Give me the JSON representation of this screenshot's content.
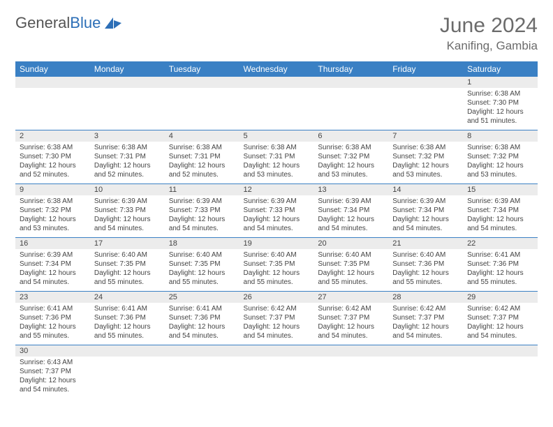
{
  "brand": {
    "word1": "General",
    "word2": "Blue",
    "logo_fill": "#2d6fb7"
  },
  "header": {
    "title": "June 2024",
    "location": "Kanifing, Gambia"
  },
  "colors": {
    "header_bg": "#3a80c4",
    "daynum_bg": "#ececec",
    "line": "#3a80c4",
    "text": "#444444"
  },
  "day_labels": [
    "Sunday",
    "Monday",
    "Tuesday",
    "Wednesday",
    "Thursday",
    "Friday",
    "Saturday"
  ],
  "weeks": [
    {
      "nums": [
        "",
        "",
        "",
        "",
        "",
        "",
        "1"
      ],
      "details": [
        "",
        "",
        "",
        "",
        "",
        "",
        "Sunrise: 6:38 AM\nSunset: 7:30 PM\nDaylight: 12 hours and 51 minutes."
      ]
    },
    {
      "nums": [
        "2",
        "3",
        "4",
        "5",
        "6",
        "7",
        "8"
      ],
      "details": [
        "Sunrise: 6:38 AM\nSunset: 7:30 PM\nDaylight: 12 hours and 52 minutes.",
        "Sunrise: 6:38 AM\nSunset: 7:31 PM\nDaylight: 12 hours and 52 minutes.",
        "Sunrise: 6:38 AM\nSunset: 7:31 PM\nDaylight: 12 hours and 52 minutes.",
        "Sunrise: 6:38 AM\nSunset: 7:31 PM\nDaylight: 12 hours and 53 minutes.",
        "Sunrise: 6:38 AM\nSunset: 7:32 PM\nDaylight: 12 hours and 53 minutes.",
        "Sunrise: 6:38 AM\nSunset: 7:32 PM\nDaylight: 12 hours and 53 minutes.",
        "Sunrise: 6:38 AM\nSunset: 7:32 PM\nDaylight: 12 hours and 53 minutes."
      ]
    },
    {
      "nums": [
        "9",
        "10",
        "11",
        "12",
        "13",
        "14",
        "15"
      ],
      "details": [
        "Sunrise: 6:38 AM\nSunset: 7:32 PM\nDaylight: 12 hours and 53 minutes.",
        "Sunrise: 6:39 AM\nSunset: 7:33 PM\nDaylight: 12 hours and 54 minutes.",
        "Sunrise: 6:39 AM\nSunset: 7:33 PM\nDaylight: 12 hours and 54 minutes.",
        "Sunrise: 6:39 AM\nSunset: 7:33 PM\nDaylight: 12 hours and 54 minutes.",
        "Sunrise: 6:39 AM\nSunset: 7:34 PM\nDaylight: 12 hours and 54 minutes.",
        "Sunrise: 6:39 AM\nSunset: 7:34 PM\nDaylight: 12 hours and 54 minutes.",
        "Sunrise: 6:39 AM\nSunset: 7:34 PM\nDaylight: 12 hours and 54 minutes."
      ]
    },
    {
      "nums": [
        "16",
        "17",
        "18",
        "19",
        "20",
        "21",
        "22"
      ],
      "details": [
        "Sunrise: 6:39 AM\nSunset: 7:34 PM\nDaylight: 12 hours and 54 minutes.",
        "Sunrise: 6:40 AM\nSunset: 7:35 PM\nDaylight: 12 hours and 55 minutes.",
        "Sunrise: 6:40 AM\nSunset: 7:35 PM\nDaylight: 12 hours and 55 minutes.",
        "Sunrise: 6:40 AM\nSunset: 7:35 PM\nDaylight: 12 hours and 55 minutes.",
        "Sunrise: 6:40 AM\nSunset: 7:35 PM\nDaylight: 12 hours and 55 minutes.",
        "Sunrise: 6:40 AM\nSunset: 7:36 PM\nDaylight: 12 hours and 55 minutes.",
        "Sunrise: 6:41 AM\nSunset: 7:36 PM\nDaylight: 12 hours and 55 minutes."
      ]
    },
    {
      "nums": [
        "23",
        "24",
        "25",
        "26",
        "27",
        "28",
        "29"
      ],
      "details": [
        "Sunrise: 6:41 AM\nSunset: 7:36 PM\nDaylight: 12 hours and 55 minutes.",
        "Sunrise: 6:41 AM\nSunset: 7:36 PM\nDaylight: 12 hours and 55 minutes.",
        "Sunrise: 6:41 AM\nSunset: 7:36 PM\nDaylight: 12 hours and 54 minutes.",
        "Sunrise: 6:42 AM\nSunset: 7:37 PM\nDaylight: 12 hours and 54 minutes.",
        "Sunrise: 6:42 AM\nSunset: 7:37 PM\nDaylight: 12 hours and 54 minutes.",
        "Sunrise: 6:42 AM\nSunset: 7:37 PM\nDaylight: 12 hours and 54 minutes.",
        "Sunrise: 6:42 AM\nSunset: 7:37 PM\nDaylight: 12 hours and 54 minutes."
      ]
    },
    {
      "nums": [
        "30",
        "",
        "",
        "",
        "",
        "",
        ""
      ],
      "details": [
        "Sunrise: 6:43 AM\nSunset: 7:37 PM\nDaylight: 12 hours and 54 minutes.",
        "",
        "",
        "",
        "",
        "",
        ""
      ]
    }
  ]
}
